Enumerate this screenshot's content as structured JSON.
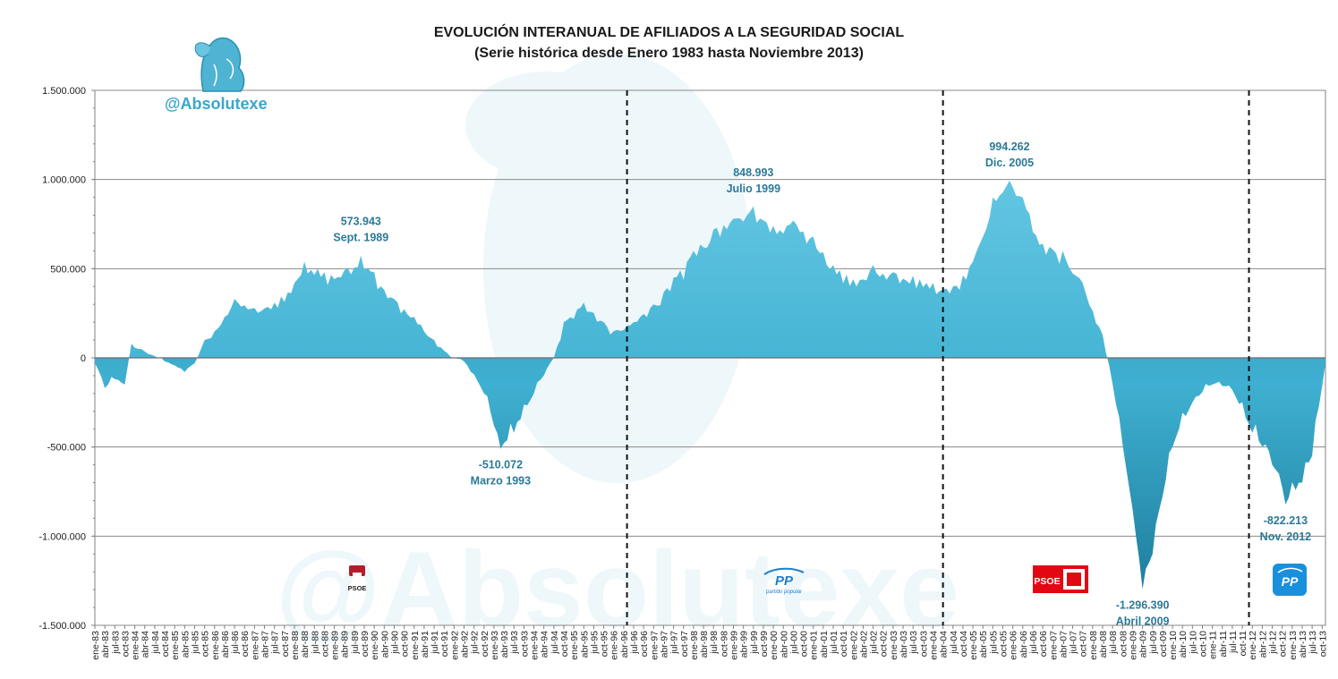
{
  "chart_data": {
    "type": "area",
    "title": "EVOLUCIÓN INTERANUAL DE AFILIADOS A LA SEGURIDAD SOCIAL",
    "subtitle": "(Serie histórica desde Enero 1983 hasta Noviembre 2013)",
    "xlabel": "",
    "ylabel": "",
    "ylim": [
      -1500000,
      1500000
    ],
    "yticks": [
      "1.500.000",
      "1.000.000",
      "500.000",
      "0",
      "-500.000",
      "-1.000.000",
      "-1.500.000"
    ],
    "ytick_values": [
      1500000,
      1000000,
      500000,
      0,
      -500000,
      -1000000,
      -1500000
    ],
    "grid": true,
    "x_start": "ene-83",
    "x_end": "nov-13",
    "xtick_labels": [
      "ene-83",
      "abr-83",
      "jul-83",
      "oct-83",
      "ene-84",
      "abr-84",
      "jul-84",
      "oct-84",
      "ene-85",
      "abr-85",
      "jul-85",
      "oct-85",
      "ene-86",
      "abr-86",
      "jul-86",
      "oct-86",
      "ene-87",
      "abr-87",
      "jul-87",
      "oct-87",
      "ene-88",
      "abr-88",
      "jul-88",
      "oct-88",
      "ene-89",
      "abr-89",
      "jul-89",
      "oct-89",
      "ene-90",
      "abr-90",
      "jul-90",
      "oct-90",
      "ene-91",
      "abr-91",
      "jul-91",
      "oct-91",
      "ene-92",
      "abr-92",
      "jul-92",
      "oct-92",
      "ene-93",
      "abr-93",
      "jul-93",
      "oct-93",
      "ene-94",
      "abr-94",
      "jul-94",
      "oct-94",
      "ene-95",
      "abr-95",
      "jul-95",
      "oct-95",
      "ene-96",
      "abr-96",
      "jul-96",
      "oct-96",
      "ene-97",
      "abr-97",
      "jul-97",
      "oct-97",
      "ene-98",
      "abr-98",
      "jul-98",
      "oct-98",
      "ene-99",
      "abr-99",
      "jul-99",
      "oct-99",
      "ene-00",
      "abr-00",
      "jul-00",
      "oct-00",
      "ene-01",
      "abr-01",
      "jul-01",
      "oct-01",
      "ene-02",
      "abr-02",
      "jul-02",
      "oct-02",
      "ene-03",
      "abr-03",
      "jul-03",
      "oct-03",
      "ene-04",
      "abr-04",
      "jul-04",
      "oct-04",
      "ene-05",
      "abr-05",
      "jul-05",
      "oct-05",
      "ene-06",
      "abr-06",
      "jul-06",
      "oct-06",
      "ene-07",
      "abr-07",
      "jul-07",
      "oct-07",
      "ene-08",
      "abr-08",
      "jul-08",
      "oct-08",
      "ene-09",
      "abr-09",
      "jul-09",
      "oct-09",
      "ene-10",
      "abr-10",
      "jul-10",
      "oct-10",
      "ene-11",
      "abr-11",
      "jul-11",
      "oct-11",
      "ene-12",
      "abr-12",
      "jul-12",
      "oct-12",
      "ene-13",
      "abr-13",
      "jul-13",
      "oct-13"
    ],
    "series": [
      {
        "name": "",
        "keypoints": [
          {
            "x": "ene-83",
            "y": -30000
          },
          {
            "x": "abr-83",
            "y": -170000
          },
          {
            "x": "jul-83",
            "y": -120000
          },
          {
            "x": "oct-83",
            "y": -150000
          },
          {
            "x": "dic-83",
            "y": 80000
          },
          {
            "x": "jul-84",
            "y": 10000
          },
          {
            "x": "oct-84",
            "y": -20000
          },
          {
            "x": "abr-85",
            "y": -80000
          },
          {
            "x": "jul-85",
            "y": -30000
          },
          {
            "x": "oct-85",
            "y": 100000
          },
          {
            "x": "ene-86",
            "y": 150000
          },
          {
            "x": "jul-86",
            "y": 330000
          },
          {
            "x": "ene-87",
            "y": 280000
          },
          {
            "x": "jul-87",
            "y": 310000
          },
          {
            "x": "ene-88",
            "y": 420000
          },
          {
            "x": "abr-88",
            "y": 540000
          },
          {
            "x": "oct-88",
            "y": 480000
          },
          {
            "x": "abr-89",
            "y": 490000
          },
          {
            "x": "sep-89",
            "y": 573943
          },
          {
            "x": "ene-90",
            "y": 480000
          },
          {
            "x": "jul-90",
            "y": 330000
          },
          {
            "x": "ene-91",
            "y": 230000
          },
          {
            "x": "jul-91",
            "y": 100000
          },
          {
            "x": "oct-91",
            "y": 40000
          },
          {
            "x": "ene-92",
            "y": 0
          },
          {
            "x": "abr-92",
            "y": -20000
          },
          {
            "x": "oct-92",
            "y": -200000
          },
          {
            "x": "mar-93",
            "y": -510072
          },
          {
            "x": "jul-93",
            "y": -420000
          },
          {
            "x": "ene-94",
            "y": -200000
          },
          {
            "x": "jul-94",
            "y": 0
          },
          {
            "x": "oct-94",
            "y": 200000
          },
          {
            "x": "abr-95",
            "y": 310000
          },
          {
            "x": "oct-95",
            "y": 200000
          },
          {
            "x": "ene-96",
            "y": 150000
          },
          {
            "x": "jul-96",
            "y": 200000
          },
          {
            "x": "ene-97",
            "y": 300000
          },
          {
            "x": "jul-97",
            "y": 450000
          },
          {
            "x": "ene-98",
            "y": 600000
          },
          {
            "x": "jul-98",
            "y": 720000
          },
          {
            "x": "ene-99",
            "y": 780000
          },
          {
            "x": "jul-99",
            "y": 848993
          },
          {
            "x": "ene-00",
            "y": 740000
          },
          {
            "x": "jul-00",
            "y": 770000
          },
          {
            "x": "ene-01",
            "y": 680000
          },
          {
            "x": "jul-01",
            "y": 520000
          },
          {
            "x": "ene-02",
            "y": 440000
          },
          {
            "x": "jul-02",
            "y": 520000
          },
          {
            "x": "ene-03",
            "y": 480000
          },
          {
            "x": "jul-03",
            "y": 460000
          },
          {
            "x": "ene-04",
            "y": 420000
          },
          {
            "x": "jul-04",
            "y": 400000
          },
          {
            "x": "ene-05",
            "y": 540000
          },
          {
            "x": "jul-05",
            "y": 900000
          },
          {
            "x": "dic-05",
            "y": 994262
          },
          {
            "x": "abr-06",
            "y": 900000
          },
          {
            "x": "oct-06",
            "y": 640000
          },
          {
            "x": "abr-07",
            "y": 600000
          },
          {
            "x": "oct-07",
            "y": 420000
          },
          {
            "x": "abr-08",
            "y": 130000
          },
          {
            "x": "jul-08",
            "y": -150000
          },
          {
            "x": "ene-09",
            "y": -850000
          },
          {
            "x": "abr-09",
            "y": -1296390
          },
          {
            "x": "jul-09",
            "y": -1100000
          },
          {
            "x": "ene-10",
            "y": -500000
          },
          {
            "x": "jul-10",
            "y": -250000
          },
          {
            "x": "ene-11",
            "y": -150000
          },
          {
            "x": "jul-11",
            "y": -180000
          },
          {
            "x": "ene-12",
            "y": -420000
          },
          {
            "x": "jul-12",
            "y": -600000
          },
          {
            "x": "nov-12",
            "y": -822213
          },
          {
            "x": "abr-13",
            "y": -700000
          },
          {
            "x": "jul-13",
            "y": -550000
          },
          {
            "x": "nov-13",
            "y": -30000
          }
        ]
      }
    ],
    "annotations": [
      {
        "x": "sep-89",
        "y": 573943,
        "value": "573.943",
        "label": "Sept. 1989",
        "position": "above"
      },
      {
        "x": "mar-93",
        "y": -510072,
        "value": "-510.072",
        "label": "Marzo 1993",
        "position": "below"
      },
      {
        "x": "jul-99",
        "y": 848993,
        "value": "848.993",
        "label": "Julio 1999",
        "position": "above"
      },
      {
        "x": "dic-05",
        "y": 994262,
        "value": "994.262",
        "label": "Dic. 2005",
        "position": "above"
      },
      {
        "x": "abr-09",
        "y": -1296390,
        "value": "-1.296.390",
        "label": "Abril 2009",
        "position": "below"
      },
      {
        "x": "nov-12",
        "y": -822213,
        "value": "-822.213",
        "label": "Nov. 2012",
        "position": "below"
      }
    ],
    "period_dividers": [
      "may-96",
      "abr-04",
      "dic-11"
    ],
    "periods": [
      {
        "party": "PSOE",
        "logo_text": "PSOE",
        "color": "#cc1f2f"
      },
      {
        "party": "PP",
        "logo_text": "PP",
        "subtext": "partido popular",
        "color": "#1f7ec9"
      },
      {
        "party": "PSOE",
        "logo_text": "PSOE",
        "color": "#e30613"
      },
      {
        "party": "PP",
        "logo_text": "PP",
        "color": "#1a8fdc"
      }
    ]
  },
  "watermark": {
    "handle": "@Absolutexe",
    "logo_icon": "griffin-icon"
  },
  "colors": {
    "area": "#3fb0d1",
    "area_dark": "#1f7f9f",
    "annotation_text": "#2b7a96",
    "grid": "#808080",
    "handle_text": "#3aa6c9"
  }
}
